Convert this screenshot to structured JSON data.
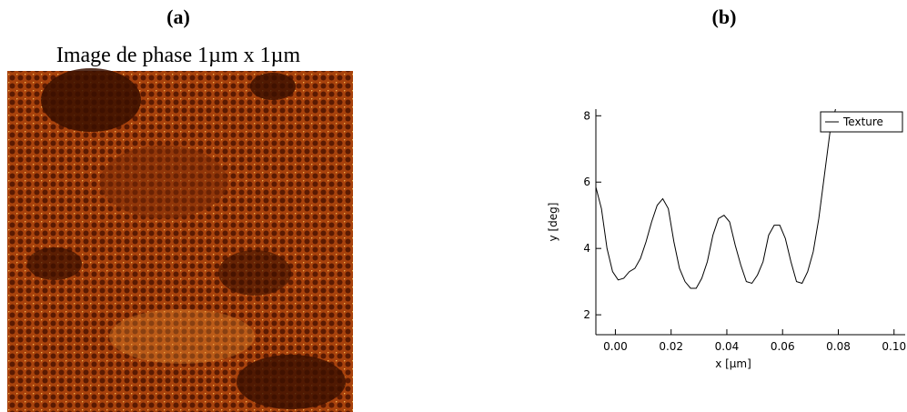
{
  "panel_a": {
    "label": "(a)",
    "title": "Image de phase 1µm x 1µm"
  },
  "panel_b": {
    "label": "(b)"
  },
  "chart_data": {
    "type": "line",
    "x_label": "x [µm]",
    "y_label": "y [deg]",
    "x": [
      -0.007,
      -0.005,
      -0.003,
      -0.001,
      0.001,
      0.003,
      0.005,
      0.007,
      0.009,
      0.011,
      0.013,
      0.015,
      0.017,
      0.019,
      0.021,
      0.023,
      0.025,
      0.027,
      0.029,
      0.031,
      0.033,
      0.035,
      0.037,
      0.039,
      0.041,
      0.043,
      0.045,
      0.047,
      0.049,
      0.051,
      0.053,
      0.055,
      0.057,
      0.059,
      0.061,
      0.063,
      0.065,
      0.067,
      0.069,
      0.071,
      0.073,
      0.075,
      0.077,
      0.079
    ],
    "series": [
      {
        "name": "Texture",
        "color": "#000000",
        "values": [
          5.85,
          5.2,
          4.0,
          3.3,
          3.05,
          3.1,
          3.3,
          3.4,
          3.7,
          4.2,
          4.8,
          5.3,
          5.5,
          5.2,
          4.2,
          3.4,
          3.0,
          2.8,
          2.8,
          3.1,
          3.6,
          4.4,
          4.9,
          5.0,
          4.8,
          4.1,
          3.5,
          3.0,
          2.95,
          3.2,
          3.6,
          4.4,
          4.7,
          4.7,
          4.3,
          3.6,
          3.0,
          2.95,
          3.3,
          3.9,
          4.9,
          6.2,
          7.5,
          8.2
        ]
      }
    ],
    "xlim": [
      -0.007,
      0.104
    ],
    "ylim": [
      1.4,
      8.2
    ],
    "xticks": [
      {
        "value": 0,
        "label": "0.00"
      },
      {
        "value": 0.02,
        "label": "0.02"
      },
      {
        "value": 0.04,
        "label": "0.04"
      },
      {
        "value": 0.06,
        "label": "0.06"
      },
      {
        "value": 0.08,
        "label": "0.08"
      },
      {
        "value": 0.1,
        "label": "0.10"
      }
    ],
    "yticks": [
      2,
      4,
      6,
      8
    ],
    "legend": "upper right",
    "grid": false
  }
}
